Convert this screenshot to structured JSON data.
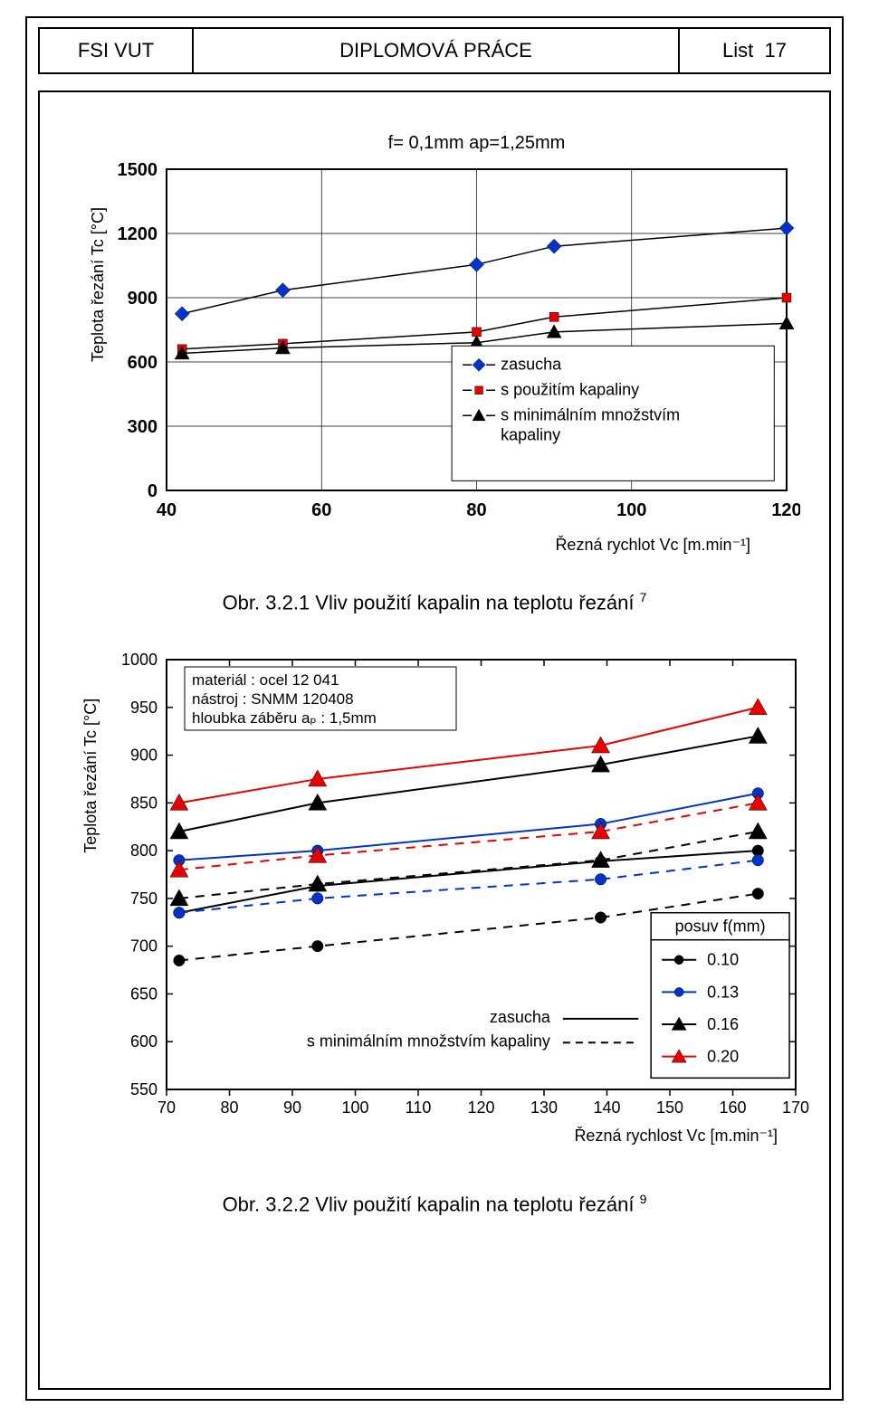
{
  "header": {
    "left": "FSI VUT",
    "center": "DIPLOMOVÁ PRÁCE",
    "right_prefix": "List",
    "right_num": "17"
  },
  "chart1": {
    "title": "f= 0,1mm  ap=1,25mm",
    "title_fontsize": 20,
    "ylabel": "Teplota řezání Tc [°C]",
    "xlabel": "Řezná rychlot Vc  [m.min⁻¹]",
    "xlim": [
      40,
      120
    ],
    "ylim": [
      0,
      1500
    ],
    "xticks": [
      40,
      60,
      80,
      100,
      120
    ],
    "yticks": [
      0,
      300,
      600,
      900,
      1200,
      1500
    ],
    "tick_fontsize": 20,
    "label_fontsize": 18,
    "background_color": "#ffffff",
    "grid_color": "#000000",
    "border_color": "#000000",
    "line_color": "#000000",
    "line_width": 1.5,
    "marker_size": 8,
    "series": [
      {
        "label": "zasucha",
        "marker": "diamond",
        "marker_color": "#0033cc",
        "x": [
          42,
          55,
          80,
          90,
          120
        ],
        "y": [
          825,
          935,
          1055,
          1140,
          1225
        ]
      },
      {
        "label": "s použitím kapaliny",
        "marker": "square",
        "marker_color": "#e60000",
        "x": [
          42,
          55,
          80,
          90,
          120
        ],
        "y": [
          660,
          685,
          740,
          810,
          900
        ]
      },
      {
        "label": "s minimálním množstvím kapaliny",
        "marker": "triangle",
        "marker_color": "#000000",
        "x": [
          42,
          55,
          80,
          90,
          120
        ],
        "y": [
          640,
          665,
          690,
          740,
          780
        ]
      }
    ],
    "legend_box": {
      "border": "#000000",
      "bg": "#ffffff",
      "fontsize": 18
    },
    "caption": "Obr. 3.2.1 Vliv použití kapalin na teplotu řezání",
    "caption_sup": "7"
  },
  "chart2": {
    "ylabel": "Teplota řezání Tc [°C]",
    "xlabel": "Řezná rychlost  Vc [m.min⁻¹]",
    "xlim": [
      70,
      170
    ],
    "ylim": [
      550,
      1000
    ],
    "xticks": [
      70,
      80,
      90,
      100,
      110,
      120,
      130,
      140,
      150,
      160,
      170
    ],
    "yticks": [
      550,
      600,
      650,
      700,
      750,
      800,
      850,
      900,
      950,
      1000
    ],
    "tick_fontsize": 18,
    "label_fontsize": 18,
    "background_color": "#ffffff",
    "border_color": "#000000",
    "line_width": 2,
    "marker_size": 10,
    "info_box": {
      "lines": [
        "materiál :  ocel 12 041",
        "nástroj   : SNMM 120408",
        "hloubka záběru aₚ : 1,5mm"
      ],
      "fontsize": 17,
      "border": "#000000"
    },
    "condition_labels": {
      "solid": "zasucha",
      "dashed": "s minimálním množstvím kapaliny",
      "fontsize": 18
    },
    "legend": {
      "title": "posuv f(mm)",
      "fontsize": 18,
      "items": [
        {
          "label": "0.10",
          "color": "#000000",
          "marker": "circle"
        },
        {
          "label": "0.13",
          "color": "#0033cc",
          "marker": "circle"
        },
        {
          "label": "0.16",
          "color": "#000000",
          "marker": "triangle"
        },
        {
          "label": "0.20",
          "color": "#e60000",
          "marker": "triangle"
        }
      ]
    },
    "series": [
      {
        "f": "0.10",
        "dash": false,
        "color": "#000000",
        "marker": "circle",
        "x": [
          72,
          94,
          139,
          164
        ],
        "y": [
          735,
          763,
          789,
          800
        ]
      },
      {
        "f": "0.10",
        "dash": true,
        "color": "#000000",
        "marker": "circle",
        "x": [
          72,
          94,
          139,
          164
        ],
        "y": [
          685,
          700,
          730,
          755
        ]
      },
      {
        "f": "0.13",
        "dash": false,
        "color": "#0033cc",
        "marker": "circle",
        "x": [
          72,
          94,
          139,
          164
        ],
        "y": [
          790,
          800,
          828,
          860
        ]
      },
      {
        "f": "0.13",
        "dash": true,
        "color": "#0033cc",
        "marker": "circle",
        "x": [
          72,
          94,
          139,
          164
        ],
        "y": [
          735,
          750,
          770,
          790
        ]
      },
      {
        "f": "0.16",
        "dash": false,
        "color": "#000000",
        "marker": "triangle",
        "x": [
          72,
          94,
          139,
          164
        ],
        "y": [
          820,
          850,
          890,
          920
        ]
      },
      {
        "f": "0.16",
        "dash": true,
        "color": "#000000",
        "marker": "triangle",
        "x": [
          72,
          94,
          139,
          164
        ],
        "y": [
          750,
          765,
          790,
          820
        ]
      },
      {
        "f": "0.20",
        "dash": false,
        "color": "#e60000",
        "marker": "triangle",
        "x": [
          72,
          94,
          139,
          164
        ],
        "y": [
          850,
          875,
          910,
          950
        ]
      },
      {
        "f": "0.20",
        "dash": true,
        "color": "#e60000",
        "marker": "triangle",
        "x": [
          72,
          94,
          139,
          164
        ],
        "y": [
          780,
          795,
          820,
          850
        ]
      }
    ],
    "caption": "Obr. 3.2.2 Vliv použití kapalin na teplotu řezání",
    "caption_sup": "9"
  }
}
